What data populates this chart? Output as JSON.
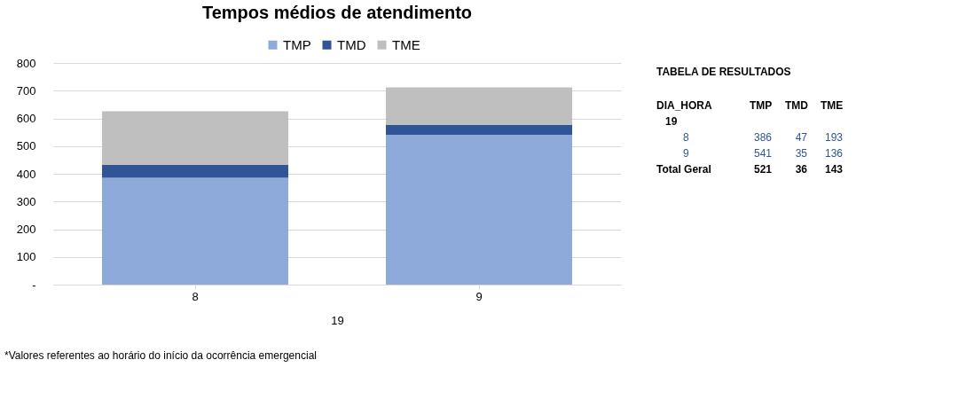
{
  "chart_data": {
    "type": "bar",
    "stacked": true,
    "title": "Tempos médios de atendimento",
    "xlabel": "19",
    "categories": [
      "8",
      "9"
    ],
    "series": [
      {
        "name": "TMP",
        "color": "#8eaadb",
        "values": [
          386,
          541
        ]
      },
      {
        "name": "TMD",
        "color": "#2f5597",
        "values": [
          47,
          35
        ]
      },
      {
        "name": "TME",
        "color": "#bfbfbf",
        "values": [
          193,
          136
        ]
      }
    ],
    "ylim": [
      0,
      800
    ],
    "yticks": [
      {
        "value": 0,
        "label": "-"
      },
      100,
      200,
      300,
      400,
      500,
      600,
      700,
      800
    ],
    "grid": "y",
    "legend": "top",
    "annotations": [
      "*Valores referentes ao horário do início da ocorrência emergencial",
      "TABELA DE RESULTADOS",
      "DIA_HORA",
      "TMP",
      "TMD",
      "TME",
      "19",
      "8",
      "386",
      "47",
      "193",
      "9",
      "541",
      "35",
      "136",
      "Total Geral",
      "521",
      "36",
      "143"
    ]
  }
}
